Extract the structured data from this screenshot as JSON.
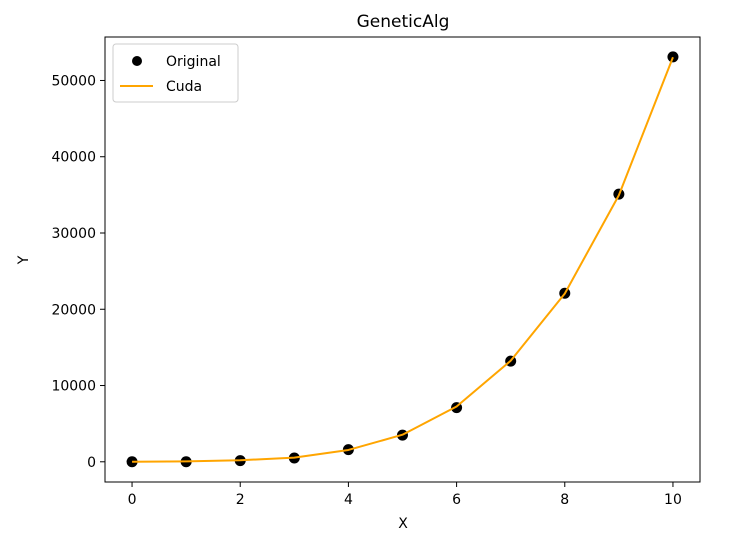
{
  "chart_data": {
    "type": "line",
    "title": "GeneticAlg",
    "xlabel": "X",
    "ylabel": "Y",
    "xlim": [
      -0.5,
      10.5
    ],
    "ylim": [
      -2650,
      55700
    ],
    "x_ticks": [
      0,
      2,
      4,
      6,
      8,
      10
    ],
    "y_ticks": [
      0,
      10000,
      20000,
      30000,
      40000,
      50000
    ],
    "grid": false,
    "legend_position": "top-left",
    "series": [
      {
        "name": "Original",
        "kind": "scatter",
        "color": "#000000",
        "x": [
          0,
          1,
          2,
          3,
          4,
          5,
          6,
          7,
          8,
          9,
          10
        ],
        "y": [
          0,
          0,
          150,
          500,
          1600,
          3500,
          7100,
          13200,
          22100,
          35100,
          53100
        ]
      },
      {
        "name": "Cuda",
        "kind": "line",
        "color": "#FFA500",
        "x": [
          0,
          1,
          2,
          3,
          4,
          5,
          6,
          7,
          8,
          9,
          10
        ],
        "y": [
          0,
          50,
          200,
          550,
          1550,
          3550,
          7250,
          13250,
          22050,
          34950,
          53050
        ]
      }
    ]
  }
}
